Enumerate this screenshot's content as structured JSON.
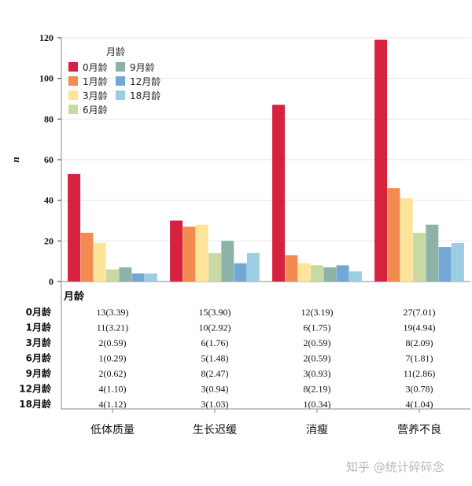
{
  "chart_data": {
    "type": "bar",
    "ylabel": "n",
    "ylim": [
      0,
      120
    ],
    "yticks": [
      0,
      20,
      40,
      60,
      80,
      100,
      120
    ],
    "grid": true,
    "legend_placement": "top-left",
    "categories": [
      "低体质量",
      "生长迟缓",
      "消瘦",
      "营养不良"
    ],
    "series": [
      {
        "name": "0月龄",
        "color": "#d6213f",
        "values": [
          53,
          30,
          87,
          119
        ]
      },
      {
        "name": "1月龄",
        "color": "#f28a52",
        "values": [
          24,
          27,
          13,
          46
        ]
      },
      {
        "name": "3月龄",
        "color": "#fde49a",
        "values": [
          19,
          28,
          9,
          41
        ]
      },
      {
        "name": "6月龄",
        "color": "#c8d9a4",
        "values": [
          6,
          14,
          8,
          24
        ]
      },
      {
        "name": "9月龄",
        "color": "#8db3a9",
        "values": [
          7,
          20,
          7,
          28
        ]
      },
      {
        "name": "12月龄",
        "color": "#72a7d6",
        "values": [
          4,
          9,
          8,
          17
        ]
      },
      {
        "name": "18月龄",
        "color": "#9dcde3",
        "values": [
          4,
          14,
          5,
          19
        ]
      }
    ],
    "legend_title": "月龄",
    "table": {
      "header": "月龄",
      "rows": [
        {
          "label": "0月龄",
          "cells": [
            "13(3.39)",
            "15(3.90)",
            "12(3.19)",
            "27(7.01)"
          ]
        },
        {
          "label": "1月龄",
          "cells": [
            "11(3.21)",
            "10(2.92)",
            "6(1.75)",
            "19(4.94)"
          ]
        },
        {
          "label": "3月龄",
          "cells": [
            "2(0.59)",
            "6(1.76)",
            "2(0.59)",
            "8(2.09)"
          ]
        },
        {
          "label": "6月龄",
          "cells": [
            "1(0.29)",
            "5(1.48)",
            "2(0.59)",
            "7(1.81)"
          ]
        },
        {
          "label": "9月龄",
          "cells": [
            "2(0.62)",
            "8(2.47)",
            "3(0.93)",
            "11(2.86)"
          ]
        },
        {
          "label": "12月龄",
          "cells": [
            "4(1.10)",
            "3(0.94)",
            "8(2.19)",
            "3(0.78)"
          ]
        },
        {
          "label": "18月龄",
          "cells": [
            "4(1.12)",
            "3(1.03)",
            "1(0.34)",
            "4(1.04)"
          ]
        }
      ]
    }
  },
  "watermark": "知乎 @统计碎碎念"
}
